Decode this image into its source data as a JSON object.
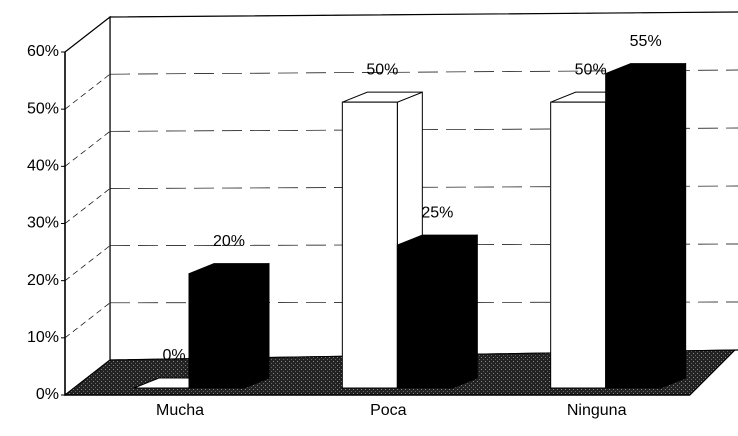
{
  "chart_data": {
    "type": "bar3d",
    "categories": [
      "Mucha",
      "Poca",
      "Ninguna"
    ],
    "series": [
      {
        "color": "#ffffff",
        "values": [
          0,
          50,
          50
        ],
        "value_labels": [
          "0%",
          "50%",
          "50%"
        ]
      },
      {
        "color": "#000000",
        "values": [
          20,
          25,
          55
        ],
        "value_labels": [
          "20%",
          "25%",
          "55%"
        ]
      }
    ],
    "ylim": [
      0,
      60
    ],
    "yticks": [
      {
        "value": 0,
        "label": "0%"
      },
      {
        "value": 10,
        "label": "10%"
      },
      {
        "value": 20,
        "label": "20%"
      },
      {
        "value": 30,
        "label": "30%"
      },
      {
        "value": 40,
        "label": "40%"
      },
      {
        "value": 50,
        "label": "50%"
      },
      {
        "value": 60,
        "label": "60%"
      }
    ],
    "grid": true
  }
}
